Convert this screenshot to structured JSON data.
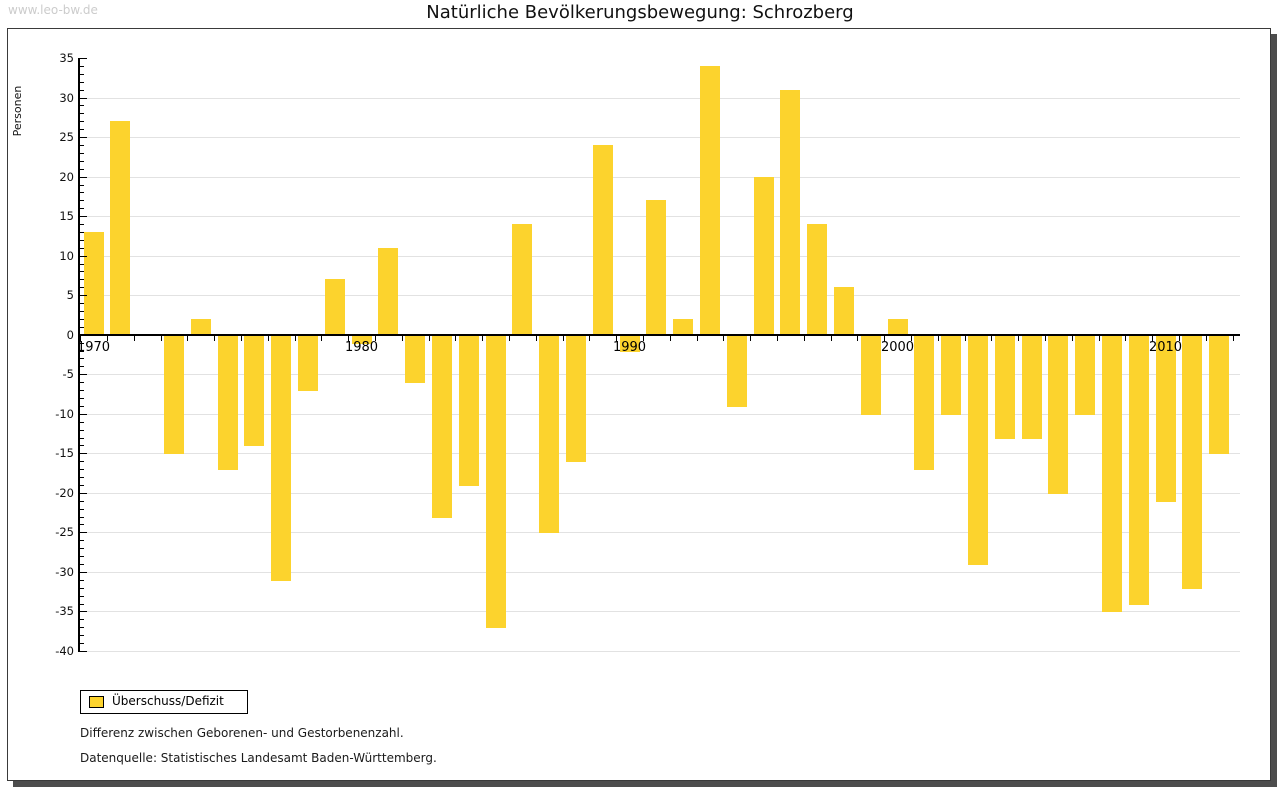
{
  "watermark": "www.leo-bw.de",
  "title": "Natürliche Bevölkerungsbewegung: Schrozberg",
  "legend": {
    "label": "Überschuss/Defizit"
  },
  "footnotes": {
    "line1": "Differenz zwischen Geborenen- und Gestorbenenzahl.",
    "line2": "Datenquelle: Statistisches Landesamt Baden-Württemberg."
  },
  "colors": {
    "bar": "#fcd32d",
    "grid": "#e2e2e2",
    "axis": "#000000",
    "watermark": "#cccccc",
    "frame_shadow": "#4d4d4d"
  },
  "chart_data": {
    "type": "bar",
    "title": "Natürliche Bevölkerungsbewegung: Schrozberg",
    "xlabel": "",
    "ylabel": "Personen",
    "ylim": [
      -40,
      35
    ],
    "y_tick_step": 5,
    "y_minor_tick_step": 1,
    "grid": true,
    "legend_position": "bottom-left",
    "x_tick_labels": [
      "1970",
      "1980",
      "1990",
      "2000",
      "2010"
    ],
    "series_name": "Überschuss/Defizit",
    "years": [
      1970,
      1971,
      1972,
      1973,
      1974,
      1975,
      1976,
      1977,
      1978,
      1979,
      1980,
      1981,
      1982,
      1983,
      1984,
      1985,
      1986,
      1987,
      1988,
      1989,
      1990,
      1991,
      1992,
      1993,
      1994,
      1995,
      1996,
      1997,
      1998,
      1999,
      2000,
      2001,
      2002,
      2003,
      2004,
      2005,
      2006,
      2007,
      2008,
      2009,
      2010,
      2011,
      2012
    ],
    "values": [
      13,
      27,
      0,
      -15,
      2,
      -17,
      -14,
      -31,
      -7,
      7,
      -1,
      11,
      -6,
      -23,
      -19,
      -37,
      14,
      -25,
      -16,
      24,
      -2,
      17,
      2,
      34,
      -9,
      20,
      31,
      14,
      6,
      -10,
      2,
      -17,
      -10,
      -29,
      -13,
      -13,
      -20,
      -10,
      -35,
      -34,
      -21,
      -32,
      -15
    ]
  }
}
